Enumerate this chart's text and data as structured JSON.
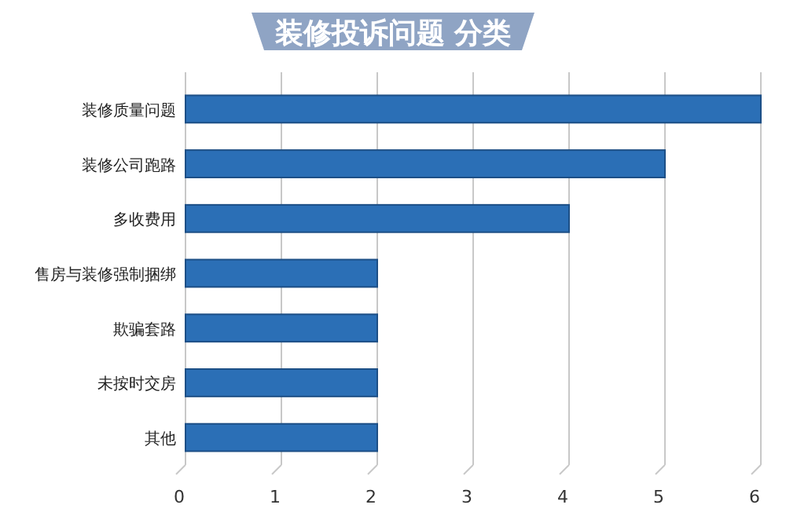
{
  "chart_data": {
    "type": "bar",
    "orientation": "horizontal",
    "title": "装修投诉问题 分类",
    "categories": [
      "装修质量问题",
      "装修公司跑路",
      "多收费用",
      "售房与装修强制捆绑",
      "欺骗套路",
      "未按时交房",
      "其他"
    ],
    "values": [
      6,
      5,
      4,
      2,
      2,
      2,
      2
    ],
    "color": "#2b6fb6",
    "xlim": [
      0,
      6
    ],
    "xticks": [
      0,
      1,
      2,
      3,
      4,
      5,
      6
    ],
    "grid": "x"
  }
}
